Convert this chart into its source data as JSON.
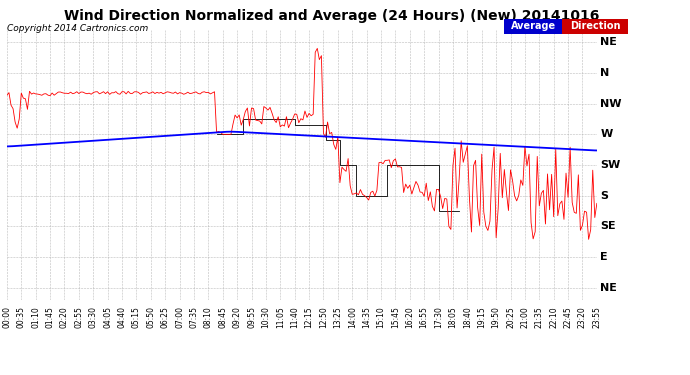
{
  "title": "Wind Direction Normalized and Average (24 Hours) (New) 20141016",
  "copyright": "Copyright 2014 Cartronics.com",
  "background_color": "#ffffff",
  "plot_bg_color": "#ffffff",
  "grid_color": "#aaaaaa",
  "ytick_labels": [
    "NE",
    "N",
    "NW",
    "W",
    "SW",
    "S",
    "SE",
    "E",
    "NE"
  ],
  "ytick_values": [
    8,
    7,
    6,
    5,
    4,
    3,
    2,
    1,
    0
  ],
  "line_avg_color": "#0000ff",
  "line_dir_color": "#ff0000",
  "line_norm_color": "#000000",
  "legend_avg_bg": "#0000cc",
  "legend_dir_bg": "#cc0000",
  "title_fontsize": 10,
  "copyright_fontsize": 6.5,
  "ytick_fontsize": 8,
  "xtick_fontsize": 5.5
}
